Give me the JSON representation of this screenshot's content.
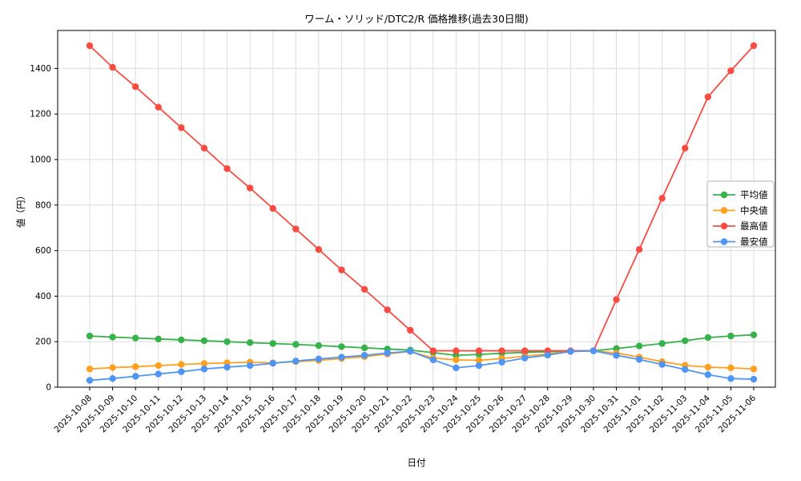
{
  "chart_data": {
    "type": "line",
    "title": "ワーム・ソリッド/DTC2/R 価格推移(過去30日間)",
    "xlabel": "日付",
    "ylabel": "値（円）",
    "grid": true,
    "legend_position": "right",
    "ylim": [
      0,
      1567
    ],
    "yticks": [
      0,
      200,
      400,
      600,
      800,
      1000,
      1200,
      1400
    ],
    "x": [
      "2025-10-08",
      "2025-10-09",
      "2025-10-10",
      "2025-10-11",
      "2025-10-12",
      "2025-10-13",
      "2025-10-14",
      "2025-10-15",
      "2025-10-16",
      "2025-10-17",
      "2025-10-18",
      "2025-10-19",
      "2025-10-20",
      "2025-10-21",
      "2025-10-22",
      "2025-10-23",
      "2025-10-24",
      "2025-10-25",
      "2025-10-26",
      "2025-10-27",
      "2025-10-28",
      "2025-10-29",
      "2025-10-30",
      "2025-10-31",
      "2025-11-01",
      "2025-11-02",
      "2025-11-03",
      "2025-11-04",
      "2025-11-05",
      "2025-11-06"
    ],
    "series": [
      {
        "key": "average",
        "name": "平均値",
        "color": "#35b24a",
        "values": [
          225,
          220,
          216,
          212,
          208,
          204,
          200,
          196,
          192,
          188,
          183,
          178,
          173,
          168,
          163,
          152,
          140,
          144,
          149,
          153,
          156,
          158,
          160,
          170,
          181,
          192,
          204,
          218,
          225,
          230
        ]
      },
      {
        "key": "median",
        "name": "中央値",
        "color": "#ffa01e",
        "values": [
          80,
          86,
          90,
          95,
          100,
          104,
          107,
          110,
          107,
          112,
          118,
          126,
          134,
          146,
          157,
          128,
          120,
          118,
          126,
          136,
          146,
          157,
          160,
          150,
          132,
          112,
          96,
          88,
          85,
          80
        ]
      },
      {
        "key": "max",
        "name": "最高値",
        "color": "#fa4b42",
        "values": [
          1500,
          1405,
          1320,
          1230,
          1140,
          1050,
          960,
          875,
          785,
          695,
          605,
          515,
          430,
          340,
          250,
          160,
          160,
          160,
          160,
          160,
          160,
          160,
          160,
          385,
          605,
          830,
          1050,
          1275,
          1390,
          1500
        ]
      },
      {
        "key": "min",
        "name": "最安値",
        "color": "#4e95f5",
        "values": [
          30,
          38,
          48,
          58,
          68,
          80,
          88,
          95,
          105,
          115,
          124,
          132,
          140,
          150,
          158,
          120,
          85,
          95,
          110,
          128,
          141,
          157,
          160,
          140,
          122,
          100,
          78,
          55,
          38,
          35
        ]
      }
    ]
  }
}
